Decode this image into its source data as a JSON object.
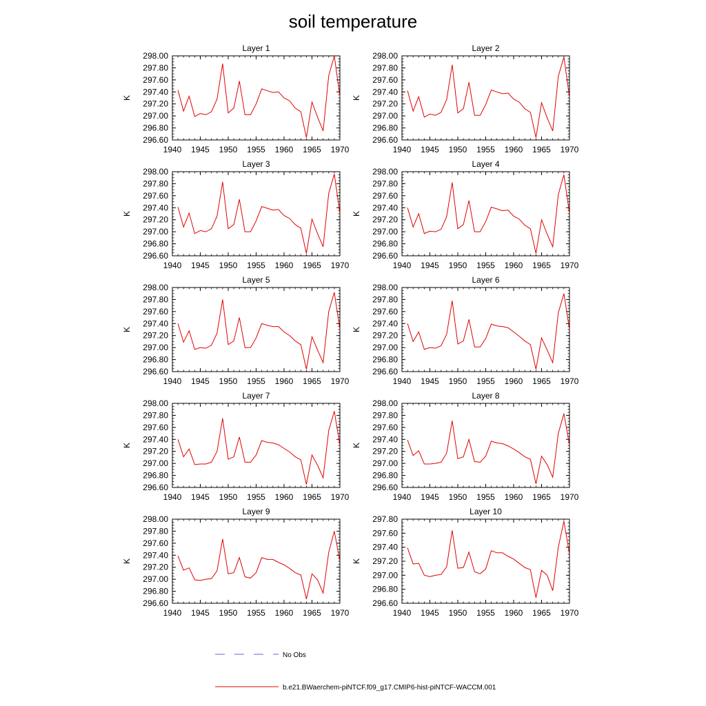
{
  "figure": {
    "title": "soil temperature"
  },
  "legend": {
    "no_obs_label": "No Obs",
    "model_label": "b.e21.BWaerchem-piNTCF.f09_g17.CMIP6-hist-piNTCF-WACCM.001",
    "no_obs_color": "#6666cc",
    "model_color": "#e00000"
  },
  "chart_data": [
    {
      "type": "line",
      "title": "Layer 1",
      "ylabel": "K",
      "xlim": [
        1940,
        1970
      ],
      "xticks": [
        1940,
        1945,
        1950,
        1955,
        1960,
        1965,
        1970
      ],
      "ylim": [
        296.6,
        298.0
      ],
      "yticks": [
        "296.60",
        "296.80",
        "297.00",
        "297.20",
        "297.40",
        "297.60",
        "297.80",
        "298.00"
      ],
      "x": [
        1941,
        1942,
        1943,
        1944,
        1945,
        1946,
        1947,
        1948,
        1949,
        1950,
        1951,
        1952,
        1953,
        1954,
        1955,
        1956,
        1957,
        1958,
        1959,
        1960,
        1961,
        1962,
        1963,
        1964,
        1965,
        1966,
        1967,
        1968,
        1969,
        1970
      ],
      "series": [
        {
          "name": "b.e21.BWaerchem-piNTCF.f09_g17.CMIP6-hist-piNTCF-WACCM.001",
          "values": [
            297.43,
            297.08,
            297.33,
            296.99,
            297.04,
            297.02,
            297.07,
            297.28,
            297.87,
            297.05,
            297.13,
            297.58,
            297.02,
            297.02,
            297.2,
            297.45,
            297.42,
            297.39,
            297.4,
            297.3,
            297.25,
            297.13,
            297.07,
            296.64,
            297.23,
            296.98,
            296.75,
            297.67,
            298.0,
            297.32
          ]
        }
      ]
    },
    {
      "type": "line",
      "title": "Layer 2",
      "ylabel": "K",
      "xlim": [
        1940,
        1970
      ],
      "xticks": [
        1940,
        1945,
        1950,
        1955,
        1960,
        1965,
        1970
      ],
      "ylim": [
        296.6,
        298.0
      ],
      "yticks": [
        "296.60",
        "296.80",
        "297.00",
        "297.20",
        "297.40",
        "297.60",
        "297.80",
        "298.00"
      ],
      "x": [
        1941,
        1942,
        1943,
        1944,
        1945,
        1946,
        1947,
        1948,
        1949,
        1950,
        1951,
        1952,
        1953,
        1954,
        1955,
        1956,
        1957,
        1958,
        1959,
        1960,
        1961,
        1962,
        1963,
        1964,
        1965,
        1966,
        1967,
        1968,
        1969,
        1970
      ],
      "series": [
        {
          "name": "b.e21.BWaerchem-piNTCF.f09_g17.CMIP6-hist-piNTCF-WACCM.001",
          "values": [
            297.42,
            297.08,
            297.32,
            296.98,
            297.03,
            297.01,
            297.06,
            297.27,
            297.85,
            297.05,
            297.12,
            297.56,
            297.01,
            297.01,
            297.19,
            297.43,
            297.4,
            297.37,
            297.38,
            297.28,
            297.23,
            297.12,
            297.06,
            296.64,
            297.22,
            296.97,
            296.75,
            297.66,
            297.98,
            297.31
          ]
        }
      ]
    },
    {
      "type": "line",
      "title": "Layer 3",
      "ylabel": "K",
      "xlim": [
        1940,
        1970
      ],
      "xticks": [
        1940,
        1945,
        1950,
        1955,
        1960,
        1965,
        1970
      ],
      "ylim": [
        296.6,
        298.0
      ],
      "yticks": [
        "296.60",
        "296.80",
        "297.00",
        "297.20",
        "297.40",
        "297.60",
        "297.80",
        "298.00"
      ],
      "x": [
        1941,
        1942,
        1943,
        1944,
        1945,
        1946,
        1947,
        1948,
        1949,
        1950,
        1951,
        1952,
        1953,
        1954,
        1955,
        1956,
        1957,
        1958,
        1959,
        1960,
        1961,
        1962,
        1963,
        1964,
        1965,
        1966,
        1967,
        1968,
        1969,
        1970
      ],
      "series": [
        {
          "name": "b.e21.BWaerchem-piNTCF.f09_g17.CMIP6-hist-piNTCF-WACCM.001",
          "values": [
            297.41,
            297.08,
            297.31,
            296.97,
            297.02,
            297.0,
            297.05,
            297.26,
            297.83,
            297.05,
            297.12,
            297.54,
            297.0,
            297.0,
            297.18,
            297.42,
            297.39,
            297.36,
            297.37,
            297.27,
            297.22,
            297.12,
            297.06,
            296.64,
            297.21,
            296.97,
            296.75,
            297.64,
            297.96,
            297.3
          ]
        }
      ]
    },
    {
      "type": "line",
      "title": "Layer 4",
      "ylabel": "K",
      "xlim": [
        1940,
        1970
      ],
      "xticks": [
        1940,
        1945,
        1950,
        1955,
        1960,
        1965,
        1970
      ],
      "ylim": [
        296.6,
        298.0
      ],
      "yticks": [
        "296.60",
        "296.80",
        "297.00",
        "297.20",
        "297.40",
        "297.60",
        "297.80",
        "298.00"
      ],
      "x": [
        1941,
        1942,
        1943,
        1944,
        1945,
        1946,
        1947,
        1948,
        1949,
        1950,
        1951,
        1952,
        1953,
        1954,
        1955,
        1956,
        1957,
        1958,
        1959,
        1960,
        1961,
        1962,
        1963,
        1964,
        1965,
        1966,
        1967,
        1968,
        1969,
        1970
      ],
      "series": [
        {
          "name": "b.e21.BWaerchem-piNTCF.f09_g17.CMIP6-hist-piNTCF-WACCM.001",
          "values": [
            297.4,
            297.08,
            297.3,
            296.97,
            297.01,
            297.0,
            297.04,
            297.25,
            297.82,
            297.05,
            297.12,
            297.52,
            297.0,
            297.0,
            297.17,
            297.41,
            297.38,
            297.35,
            297.36,
            297.26,
            297.21,
            297.11,
            297.05,
            296.64,
            297.2,
            296.96,
            296.75,
            297.62,
            297.95,
            297.3
          ]
        }
      ]
    },
    {
      "type": "line",
      "title": "Layer 5",
      "ylabel": "K",
      "xlim": [
        1940,
        1970
      ],
      "xticks": [
        1940,
        1945,
        1950,
        1955,
        1960,
        1965,
        1970
      ],
      "ylim": [
        296.6,
        298.0
      ],
      "yticks": [
        "296.60",
        "296.80",
        "297.00",
        "297.20",
        "297.40",
        "297.60",
        "297.80",
        "298.00"
      ],
      "x": [
        1941,
        1942,
        1943,
        1944,
        1945,
        1946,
        1947,
        1948,
        1949,
        1950,
        1951,
        1952,
        1953,
        1954,
        1955,
        1956,
        1957,
        1958,
        1959,
        1960,
        1961,
        1962,
        1963,
        1964,
        1965,
        1966,
        1967,
        1968,
        1969,
        1970
      ],
      "series": [
        {
          "name": "b.e21.BWaerchem-piNTCF.f09_g17.CMIP6-hist-piNTCF-WACCM.001",
          "values": [
            297.4,
            297.09,
            297.28,
            296.97,
            297.0,
            296.99,
            297.04,
            297.24,
            297.8,
            297.05,
            297.11,
            297.5,
            297.0,
            297.0,
            297.16,
            297.4,
            297.37,
            297.35,
            297.35,
            297.26,
            297.2,
            297.11,
            297.05,
            296.64,
            297.18,
            296.96,
            296.75,
            297.6,
            297.92,
            297.3
          ]
        }
      ]
    },
    {
      "type": "line",
      "title": "Layer 6",
      "ylabel": "K",
      "xlim": [
        1940,
        1970
      ],
      "xticks": [
        1940,
        1945,
        1950,
        1955,
        1960,
        1965,
        1970
      ],
      "ylim": [
        296.6,
        298.0
      ],
      "yticks": [
        "296.60",
        "296.80",
        "297.00",
        "297.20",
        "297.40",
        "297.60",
        "297.80",
        "298.00"
      ],
      "x": [
        1941,
        1942,
        1943,
        1944,
        1945,
        1946,
        1947,
        1948,
        1949,
        1950,
        1951,
        1952,
        1953,
        1954,
        1955,
        1956,
        1957,
        1958,
        1959,
        1960,
        1961,
        1962,
        1963,
        1964,
        1965,
        1966,
        1967,
        1968,
        1969,
        1970
      ],
      "series": [
        {
          "name": "b.e21.BWaerchem-piNTCF.f09_g17.CMIP6-hist-piNTCF-WACCM.001",
          "values": [
            297.4,
            297.1,
            297.26,
            296.97,
            297.0,
            296.99,
            297.03,
            297.22,
            297.78,
            297.06,
            297.11,
            297.47,
            297.01,
            297.01,
            297.15,
            297.39,
            297.36,
            297.35,
            297.33,
            297.26,
            297.19,
            297.11,
            297.05,
            296.64,
            297.16,
            296.96,
            296.75,
            297.58,
            297.9,
            297.3
          ]
        }
      ]
    },
    {
      "type": "line",
      "title": "Layer 7",
      "ylabel": "K",
      "xlim": [
        1940,
        1970
      ],
      "xticks": [
        1940,
        1945,
        1950,
        1955,
        1960,
        1965,
        1970
      ],
      "ylim": [
        296.6,
        298.0
      ],
      "yticks": [
        "296.60",
        "296.80",
        "297.00",
        "297.20",
        "297.40",
        "297.60",
        "297.80",
        "298.00"
      ],
      "x": [
        1941,
        1942,
        1943,
        1944,
        1945,
        1946,
        1947,
        1948,
        1949,
        1950,
        1951,
        1952,
        1953,
        1954,
        1955,
        1956,
        1957,
        1958,
        1959,
        1960,
        1961,
        1962,
        1963,
        1964,
        1965,
        1966,
        1967,
        1968,
        1969,
        1970
      ],
      "series": [
        {
          "name": "b.e21.BWaerchem-piNTCF.f09_g17.CMIP6-hist-piNTCF-WACCM.001",
          "values": [
            297.4,
            297.11,
            297.24,
            296.98,
            296.99,
            296.99,
            297.02,
            297.2,
            297.75,
            297.07,
            297.11,
            297.44,
            297.02,
            297.02,
            297.14,
            297.38,
            297.35,
            297.34,
            297.31,
            297.25,
            297.19,
            297.11,
            297.06,
            296.65,
            297.14,
            296.97,
            296.76,
            297.55,
            297.87,
            297.3
          ]
        }
      ]
    },
    {
      "type": "line",
      "title": "Layer 8",
      "ylabel": "K",
      "xlim": [
        1940,
        1970
      ],
      "xticks": [
        1940,
        1945,
        1950,
        1955,
        1960,
        1965,
        1970
      ],
      "ylim": [
        296.6,
        298.0
      ],
      "yticks": [
        "296.60",
        "296.80",
        "297.00",
        "297.20",
        "297.40",
        "297.60",
        "297.80",
        "298.00"
      ],
      "x": [
        1941,
        1942,
        1943,
        1944,
        1945,
        1946,
        1947,
        1948,
        1949,
        1950,
        1951,
        1952,
        1953,
        1954,
        1955,
        1956,
        1957,
        1958,
        1959,
        1960,
        1961,
        1962,
        1963,
        1964,
        1965,
        1966,
        1967,
        1968,
        1969,
        1970
      ],
      "series": [
        {
          "name": "b.e21.BWaerchem-piNTCF.f09_g17.CMIP6-hist-piNTCF-WACCM.001",
          "values": [
            297.39,
            297.13,
            297.21,
            296.99,
            296.99,
            297.0,
            297.02,
            297.17,
            297.71,
            297.08,
            297.11,
            297.4,
            297.03,
            297.02,
            297.12,
            297.37,
            297.34,
            297.33,
            297.29,
            297.24,
            297.18,
            297.11,
            297.07,
            296.66,
            297.12,
            296.98,
            296.77,
            297.5,
            297.83,
            297.3
          ]
        }
      ]
    },
    {
      "type": "line",
      "title": "Layer 9",
      "ylabel": "K",
      "xlim": [
        1940,
        1970
      ],
      "xticks": [
        1940,
        1945,
        1950,
        1955,
        1960,
        1965,
        1970
      ],
      "ylim": [
        296.6,
        298.0
      ],
      "yticks": [
        "296.60",
        "296.80",
        "297.00",
        "297.20",
        "297.40",
        "297.60",
        "297.80",
        "298.00"
      ],
      "x": [
        1941,
        1942,
        1943,
        1944,
        1945,
        1946,
        1947,
        1948,
        1949,
        1950,
        1951,
        1952,
        1953,
        1954,
        1955,
        1956,
        1957,
        1958,
        1959,
        1960,
        1961,
        1962,
        1963,
        1964,
        1965,
        1966,
        1967,
        1968,
        1969,
        1970
      ],
      "series": [
        {
          "name": "b.e21.BWaerchem-piNTCF.f09_g17.CMIP6-hist-piNTCF-WACCM.001",
          "values": [
            297.39,
            297.15,
            297.19,
            296.99,
            296.98,
            297.0,
            297.01,
            297.14,
            297.67,
            297.09,
            297.11,
            297.36,
            297.04,
            297.02,
            297.11,
            297.36,
            297.33,
            297.33,
            297.28,
            297.24,
            297.18,
            297.11,
            297.07,
            296.67,
            297.09,
            296.99,
            296.77,
            297.45,
            297.8,
            297.3
          ]
        }
      ]
    },
    {
      "type": "line",
      "title": "Layer 10",
      "ylabel": "K",
      "xlim": [
        1940,
        1970
      ],
      "xticks": [
        1940,
        1945,
        1950,
        1955,
        1960,
        1965,
        1970
      ],
      "ylim": [
        296.6,
        297.8
      ],
      "yticks": [
        "296.60",
        "296.80",
        "297.00",
        "297.20",
        "297.40",
        "297.60",
        "297.80"
      ],
      "x": [
        1941,
        1942,
        1943,
        1944,
        1945,
        1946,
        1947,
        1948,
        1949,
        1950,
        1951,
        1952,
        1953,
        1954,
        1955,
        1956,
        1957,
        1958,
        1959,
        1960,
        1961,
        1962,
        1963,
        1964,
        1965,
        1966,
        1967,
        1968,
        1969,
        1970
      ],
      "series": [
        {
          "name": "b.e21.BWaerchem-piNTCF.f09_g17.CMIP6-hist-piNTCF-WACCM.001",
          "values": [
            297.39,
            297.16,
            297.17,
            297.0,
            296.98,
            297.0,
            297.01,
            297.12,
            297.64,
            297.1,
            297.11,
            297.33,
            297.05,
            297.02,
            297.09,
            297.35,
            297.32,
            297.32,
            297.27,
            297.23,
            297.17,
            297.11,
            297.08,
            296.68,
            297.07,
            297.0,
            296.78,
            297.4,
            297.77,
            297.3
          ]
        }
      ]
    }
  ]
}
